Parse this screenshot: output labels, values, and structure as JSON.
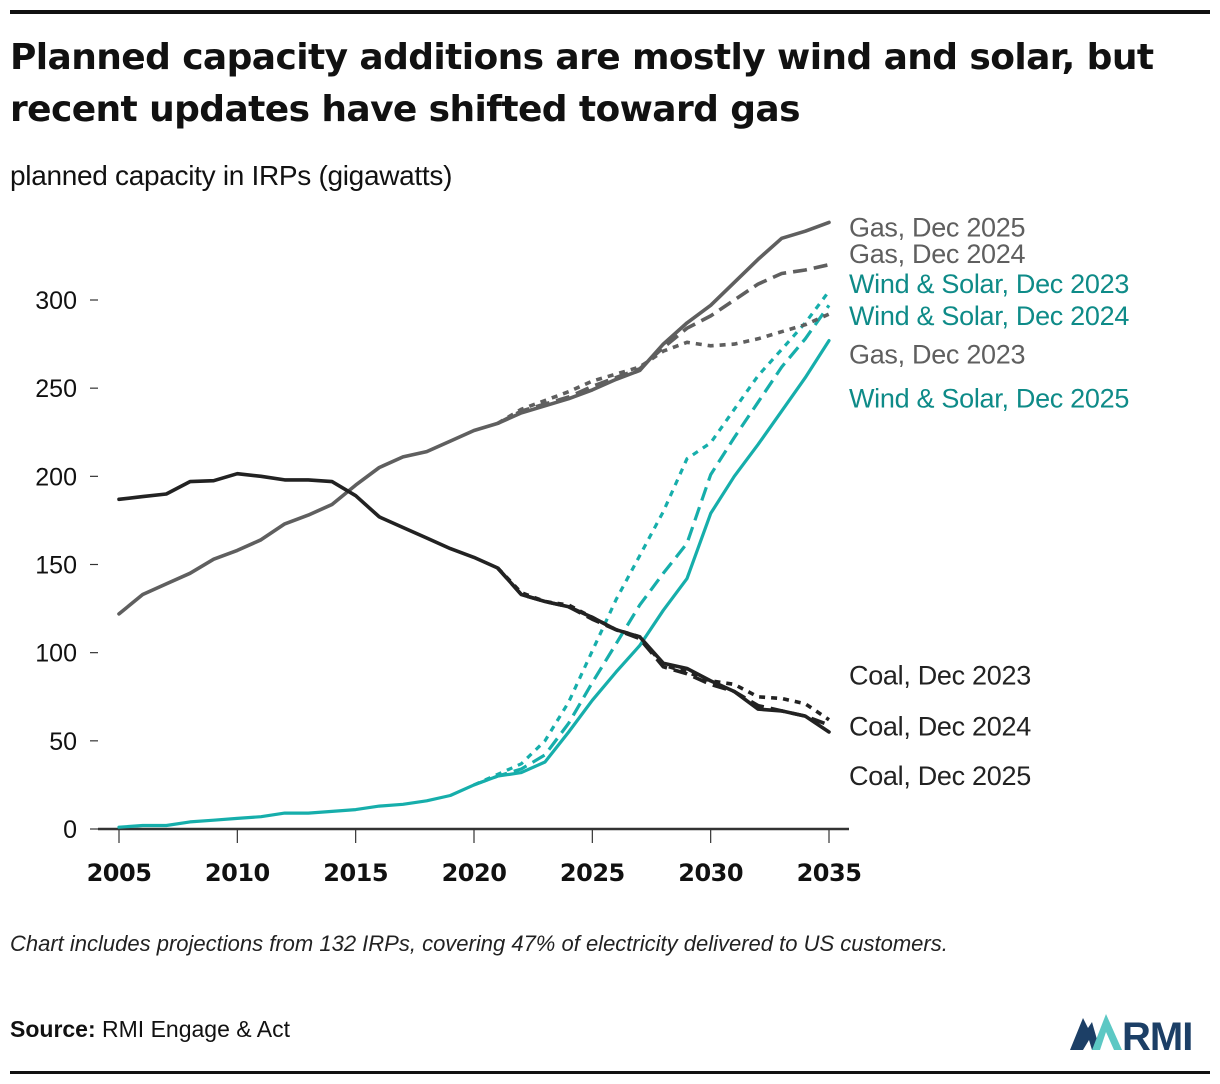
{
  "header": {
    "title": "Planned capacity additions are mostly wind and solar, but recent updates have shifted toward gas",
    "subtitle": "planned capacity in IRPs (gigawatts)"
  },
  "footer": {
    "note": "Chart includes projections from 132 IRPs, covering 47% of electricity delivered to US customers.",
    "source_label": "Source:",
    "source_text": "RMI Engage & Act",
    "logo_text": "RMI"
  },
  "colors": {
    "coal": "#222222",
    "gas": "#5f5f5f",
    "wind_solar": "#16aeab",
    "wind_solar_label": "#0e8b88",
    "axis": "#333333"
  },
  "chart_data": {
    "type": "line",
    "title": "Planned capacity additions are mostly wind and solar, but recent updates have shifted toward gas",
    "subtitle": "planned capacity in IRPs (gigawatts)",
    "xlabel": "",
    "ylabel": "planned capacity in IRPs (gigawatts)",
    "xlim": [
      2005,
      2035
    ],
    "ylim": [
      0,
      300
    ],
    "xticks": [
      2005,
      2010,
      2015,
      2020,
      2025,
      2030,
      2035
    ],
    "yticks": [
      0,
      50,
      100,
      150,
      200,
      250,
      300
    ],
    "grid": false,
    "legend": "direct-labels-right",
    "series": [
      {
        "name": "Gas, Dec 2025",
        "fuel": "gas",
        "style": "solid",
        "x": [
          2005,
          2006,
          2007,
          2008,
          2009,
          2010,
          2011,
          2012,
          2013,
          2014,
          2015,
          2016,
          2017,
          2018,
          2019,
          2020,
          2021,
          2022,
          2023,
          2024,
          2025,
          2026,
          2027,
          2028,
          2029,
          2030,
          2031,
          2032,
          2033,
          2034,
          2035
        ],
        "values": [
          122,
          133,
          139,
          145,
          153,
          158,
          164,
          173,
          178,
          184,
          195,
          205,
          211,
          214,
          220,
          226,
          230,
          236,
          240,
          244,
          249,
          255,
          260,
          275,
          287,
          297,
          310,
          323,
          335,
          339,
          344
        ]
      },
      {
        "name": "Gas, Dec 2024",
        "fuel": "gas",
        "style": "dashed",
        "x": [
          2021,
          2022,
          2023,
          2024,
          2025,
          2026,
          2027,
          2028,
          2029,
          2030,
          2031,
          2032,
          2033,
          2034,
          2035
        ],
        "values": [
          230,
          237,
          241,
          245,
          251,
          256,
          261,
          273,
          284,
          291,
          300,
          309,
          315,
          317,
          320
        ]
      },
      {
        "name": "Gas, Dec 2023",
        "fuel": "gas",
        "style": "dotted",
        "x": [
          2021,
          2022,
          2023,
          2024,
          2025,
          2026,
          2027,
          2028,
          2029,
          2030,
          2031,
          2032,
          2033,
          2034,
          2035
        ],
        "values": [
          230,
          238,
          243,
          248,
          254,
          258,
          262,
          271,
          276,
          274,
          275,
          278,
          282,
          286,
          292
        ]
      },
      {
        "name": "Wind & Solar, Dec 2023",
        "fuel": "wind_solar",
        "style": "dotted",
        "x": [
          2020,
          2021,
          2022,
          2023,
          2024,
          2025,
          2026,
          2027,
          2028,
          2029,
          2030,
          2031,
          2032,
          2033,
          2034,
          2035
        ],
        "values": [
          25,
          31,
          37,
          50,
          72,
          101,
          130,
          155,
          180,
          210,
          219,
          238,
          257,
          272,
          287,
          305
        ]
      },
      {
        "name": "Wind & Solar, Dec 2024",
        "fuel": "wind_solar",
        "style": "dashed",
        "x": [
          2020,
          2021,
          2022,
          2023,
          2024,
          2025,
          2026,
          2027,
          2028,
          2029,
          2030,
          2031,
          2032,
          2033,
          2034,
          2035
        ],
        "values": [
          25,
          30,
          34,
          42,
          60,
          83,
          105,
          127,
          145,
          162,
          201,
          222,
          242,
          262,
          278,
          297
        ]
      },
      {
        "name": "Wind & Solar, Dec 2025",
        "fuel": "wind_solar",
        "style": "solid",
        "x": [
          2005,
          2006,
          2007,
          2008,
          2009,
          2010,
          2011,
          2012,
          2013,
          2014,
          2015,
          2016,
          2017,
          2018,
          2019,
          2020,
          2021,
          2022,
          2023,
          2024,
          2025,
          2026,
          2027,
          2028,
          2029,
          2030,
          2031,
          2032,
          2033,
          2034,
          2035
        ],
        "values": [
          1,
          2,
          2,
          4,
          5,
          6,
          7,
          9,
          9,
          10,
          11,
          13,
          14,
          16,
          19,
          25,
          30,
          32,
          38,
          55,
          73,
          89,
          104,
          124,
          142,
          179,
          200,
          218,
          237,
          256,
          277
        ]
      },
      {
        "name": "Coal, Dec 2023",
        "fuel": "coal",
        "style": "dotted",
        "x": [
          2021,
          2022,
          2023,
          2024,
          2025,
          2026,
          2027,
          2028,
          2029,
          2030,
          2031,
          2032,
          2033,
          2034,
          2035
        ],
        "values": [
          148,
          134,
          129,
          127,
          120,
          113,
          109,
          93,
          89,
          84,
          82,
          75,
          74,
          71,
          62
        ]
      },
      {
        "name": "Coal, Dec 2024",
        "fuel": "coal",
        "style": "dashed",
        "x": [
          2021,
          2022,
          2023,
          2024,
          2025,
          2026,
          2027,
          2028,
          2029,
          2030,
          2031,
          2032,
          2033,
          2034,
          2035
        ],
        "values": [
          148,
          133,
          129,
          126,
          119,
          113,
          108,
          92,
          88,
          82,
          78,
          70,
          67,
          64,
          59
        ]
      },
      {
        "name": "Coal, Dec 2025",
        "fuel": "coal",
        "style": "solid",
        "x": [
          2005,
          2006,
          2007,
          2008,
          2009,
          2010,
          2011,
          2012,
          2013,
          2014,
          2015,
          2016,
          2017,
          2018,
          2019,
          2020,
          2021,
          2022,
          2023,
          2024,
          2025,
          2026,
          2027,
          2028,
          2029,
          2030,
          2031,
          2032,
          2033,
          2034,
          2035
        ],
        "values": [
          187,
          188.5,
          190,
          197,
          197.5,
          201.5,
          200,
          198,
          198,
          197,
          189,
          177,
          171,
          165,
          159,
          154,
          148,
          133,
          129,
          126,
          120,
          113,
          109,
          94,
          91,
          84,
          78,
          68,
          67,
          64,
          55
        ]
      }
    ],
    "labels": [
      {
        "text": "Gas, Dec 2025",
        "fuel": "gas",
        "anchor_value": 341
      },
      {
        "text": "Gas, Dec 2024",
        "fuel": "gas",
        "anchor_value": 326
      },
      {
        "text": "Wind & Solar, Dec 2023",
        "fuel": "wind_solar",
        "anchor_value": 309
      },
      {
        "text": "Wind & Solar, Dec 2024",
        "fuel": "wind_solar",
        "anchor_value": 291
      },
      {
        "text": "Gas, Dec 2023",
        "fuel": "gas",
        "anchor_value": 269
      },
      {
        "text": "Wind & Solar, Dec 2025",
        "fuel": "wind_solar",
        "anchor_value": 244
      },
      {
        "text": "Coal, Dec 2023",
        "fuel": "coal",
        "anchor_value": 87
      },
      {
        "text": "Coal, Dec 2024",
        "fuel": "coal",
        "anchor_value": 58
      },
      {
        "text": "Coal, Dec 2025",
        "fuel": "coal",
        "anchor_value": 30
      }
    ]
  }
}
